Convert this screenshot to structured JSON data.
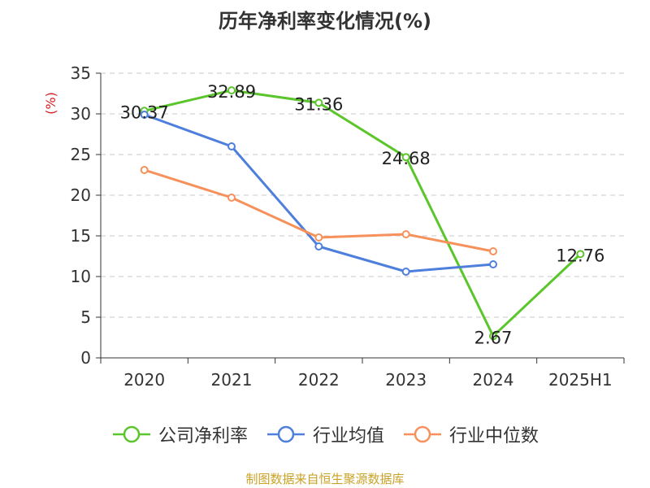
{
  "page": {
    "title": "历年净利率变化情况(%)",
    "source": "制图数据来自恒生聚源数据库"
  },
  "chart_data": {
    "type": "line",
    "title": "历年净利率变化情况(%)",
    "ylabel": "(%)",
    "xlabel": "",
    "categories": [
      "2020",
      "2021",
      "2022",
      "2023",
      "2024",
      "2025H1"
    ],
    "yticks": [
      "0",
      "5",
      "10",
      "15",
      "20",
      "25",
      "30",
      "35"
    ],
    "ylim": [
      0,
      35
    ],
    "grid": true,
    "legend_position": "bottom",
    "series": [
      {
        "name": "公司净利率",
        "color": "#5bc62b",
        "values": [
          30.37,
          32.89,
          31.36,
          24.68,
          2.67,
          12.76
        ],
        "labels": [
          "30.37",
          "32.89",
          "31.36",
          "24.68",
          "2.67",
          "12.76"
        ]
      },
      {
        "name": "行业均值",
        "color": "#4e7fdc",
        "values": [
          29.9,
          26.0,
          13.7,
          10.6,
          11.5,
          null
        ]
      },
      {
        "name": "行业中位数",
        "color": "#f7915c",
        "values": [
          23.1,
          19.7,
          14.8,
          15.2,
          13.1,
          null
        ]
      }
    ]
  }
}
